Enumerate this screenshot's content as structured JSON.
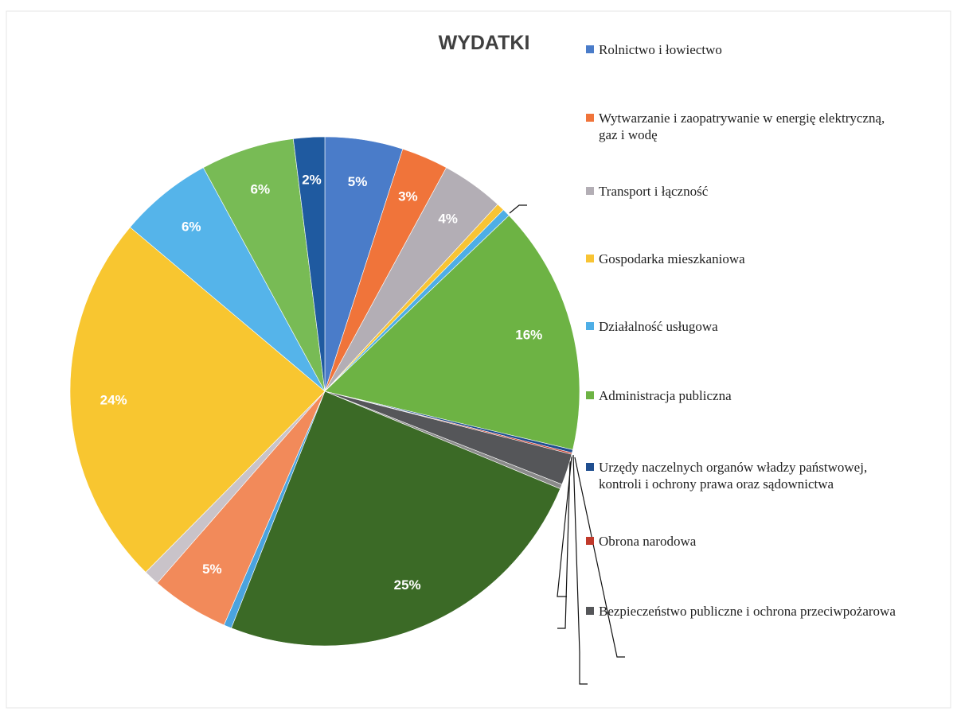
{
  "chart_data": {
    "type": "pie",
    "title": "WYDATKI",
    "categories": [
      "Rolnictwo i łowiectwo",
      "Wytwarzanie i zaopatrywanie w energię elektryczną, gaz i wodę",
      "Transport i łączność",
      "Gospodarka mieszkaniowa",
      "Działalność usługowa",
      "Administracja publiczna",
      "Urzędy naczelnych organów władzy państwowej, kontroli i ochrony prawa oraz sądownictwa",
      "Obrona narodowa",
      "Bezpieczeństwo publiczne i ochrona przeciwpożarowa",
      null,
      null,
      null,
      null,
      null,
      null,
      null,
      null,
      null
    ],
    "values": [
      5,
      3,
      4,
      0.5,
      0.5,
      16,
      0.2,
      0.1,
      2,
      0.3,
      25,
      0.5,
      5,
      1,
      24,
      6,
      6,
      2
    ],
    "value_labels": [
      "5%",
      "3%",
      "4%",
      null,
      null,
      "16%",
      null,
      null,
      null,
      null,
      "25%",
      null,
      "5%",
      null,
      "24%",
      "6%",
      "6%",
      "2%"
    ],
    "colors": [
      "#4a7cc9",
      "#f0743a",
      "#b3aeb5",
      "#f8c434",
      "#4eaee6",
      "#6db344",
      "#1f4e8f",
      "#c0392b",
      "#555659",
      "#8a8a8a",
      "#3b6a26",
      "#4aa3df",
      "#f28a5a",
      "#c9c3c9",
      "#f8c630",
      "#55b4ea",
      "#78bb55",
      "#1f5aa0"
    ],
    "legend": "right"
  }
}
